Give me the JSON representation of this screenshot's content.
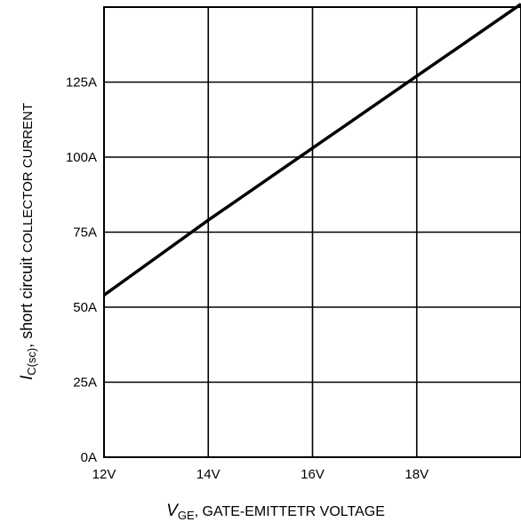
{
  "chart_data": {
    "type": "line",
    "xlabel": {
      "symbol": "V",
      "subscript": "GE",
      "text": ", GATE-EMITTETR VOLTAGE"
    },
    "ylabel": {
      "symbol": "I",
      "subscript": "C(sc)",
      "text_main": ", short circuit ",
      "text_small": "COLLECTOR CURRENT"
    },
    "xlim": [
      12,
      20
    ],
    "ylim": [
      0,
      150
    ],
    "x_ticks": [
      {
        "value": 12,
        "label": "12V"
      },
      {
        "value": 14,
        "label": "14V"
      },
      {
        "value": 16,
        "label": "16V"
      },
      {
        "value": 18,
        "label": "18V"
      }
    ],
    "y_ticks": [
      {
        "value": 0,
        "label": "0A"
      },
      {
        "value": 25,
        "label": "25A"
      },
      {
        "value": 50,
        "label": "50A"
      },
      {
        "value": 75,
        "label": "75A"
      },
      {
        "value": 100,
        "label": "100A"
      },
      {
        "value": 125,
        "label": "125A"
      }
    ],
    "grid": true,
    "series": [
      {
        "x": [
          12,
          14,
          16,
          18,
          20
        ],
        "y": [
          54,
          79,
          103,
          127,
          151
        ],
        "color": "#000000"
      }
    ]
  }
}
